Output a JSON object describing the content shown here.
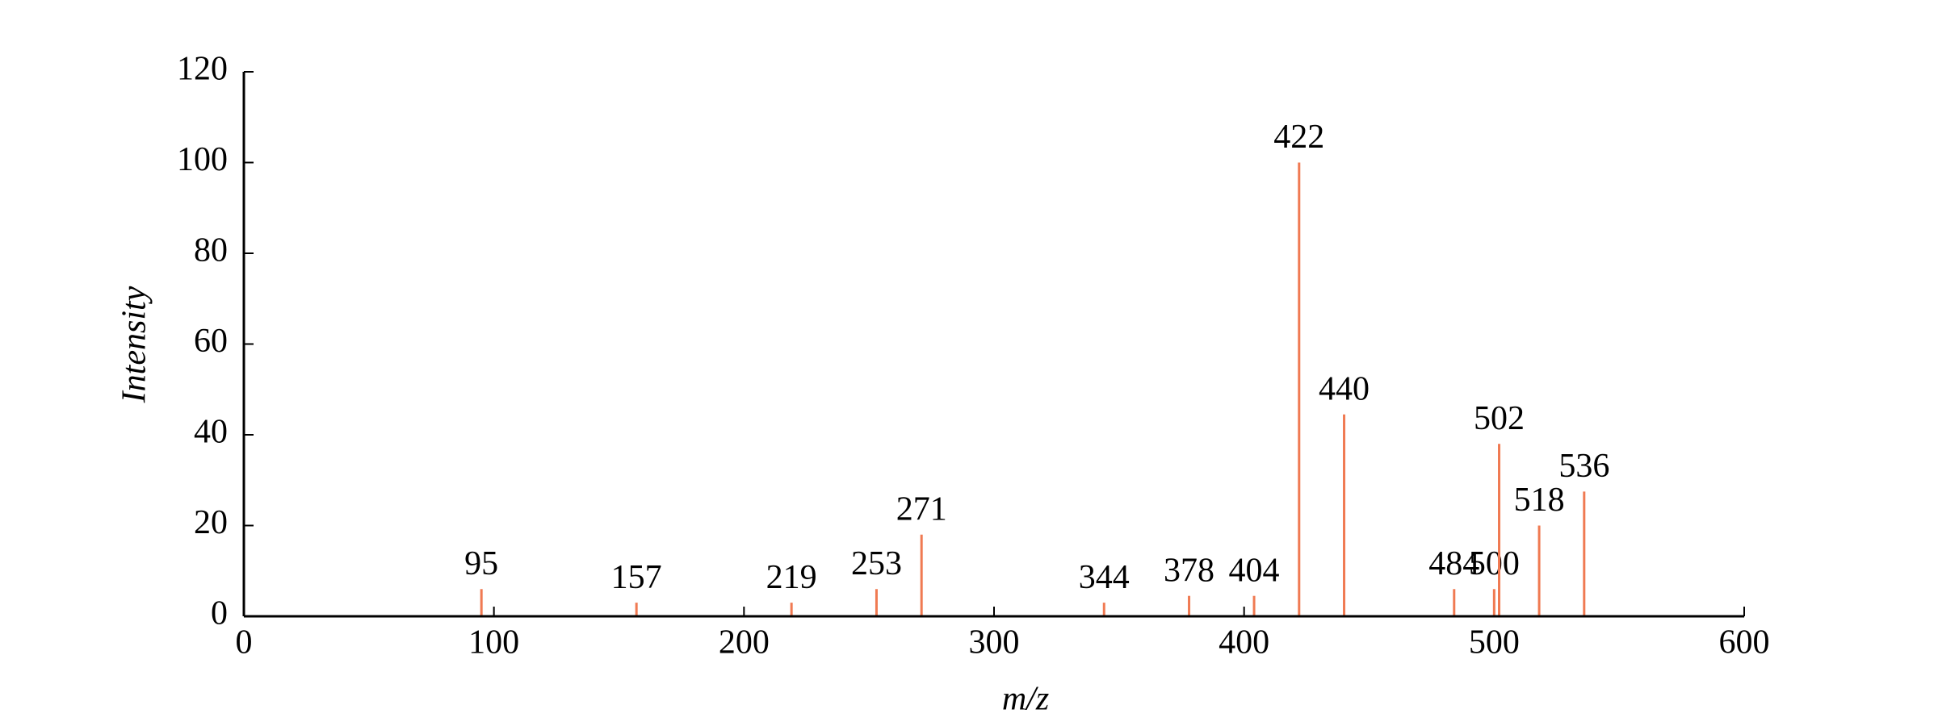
{
  "chart_data": {
    "type": "stem",
    "xlabel": "m/z",
    "ylabel": "Intensity",
    "x": [
      95,
      157,
      219,
      253,
      271,
      344,
      378,
      404,
      422,
      440,
      484,
      500,
      502,
      518,
      536
    ],
    "values": [
      6,
      3,
      3,
      6,
      18,
      3,
      4.5,
      4.5,
      100,
      44.5,
      6,
      6,
      38,
      20,
      27.5
    ],
    "color": "#f07a52",
    "xlim": [
      0,
      600
    ],
    "xticks": [
      0,
      100,
      200,
      300,
      400,
      500,
      600
    ],
    "ylim": [
      0,
      120
    ],
    "yticks": [
      0,
      20,
      40,
      60,
      80,
      100,
      120
    ]
  }
}
